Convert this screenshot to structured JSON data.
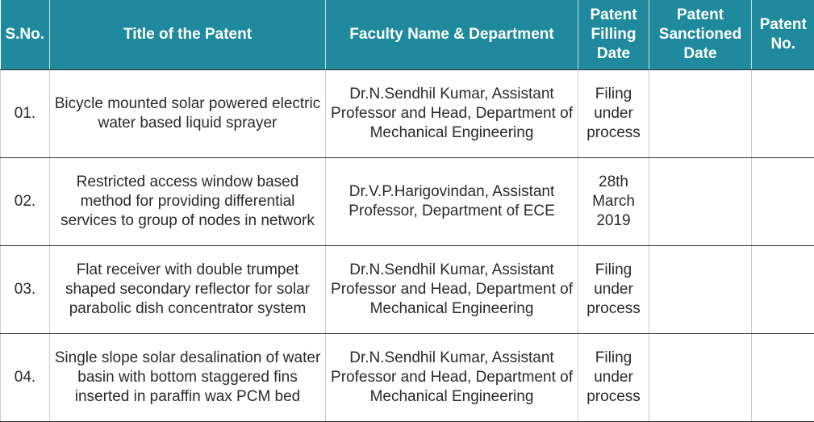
{
  "header": {
    "sno": "S.No.",
    "title": "Title of the Patent",
    "faculty": "Faculty Name & Department",
    "filling_date": "Patent Filling Date",
    "sanctioned_date": "Patent Sanctioned Date",
    "patent_no": "Patent No."
  },
  "rows": [
    {
      "sno": "01.",
      "title": "Bicycle mounted solar powered electric water based liquid sprayer",
      "faculty": "Dr.N.Sendhil Kumar, Assistant Professor and Head, Department of Mechanical Engineering",
      "filling_date": "Filing under process",
      "sanctioned_date": "",
      "patent_no": ""
    },
    {
      "sno": "02.",
      "title": "Restricted access window based method for providing differential services to group of nodes in network",
      "faculty": "Dr.V.P.Harigovindan, Assistant Professor, Department of ECE",
      "filling_date": "28th March 2019",
      "sanctioned_date": "",
      "patent_no": ""
    },
    {
      "sno": "03.",
      "title": "Flat receiver with double trumpet shaped secondary reflector for solar parabolic dish concentrator system",
      "faculty": "Dr.N.Sendhil Kumar, Assistant Professor and Head, Department of Mechanical Engineering",
      "filling_date": "Filing under process",
      "sanctioned_date": "",
      "patent_no": ""
    },
    {
      "sno": "04.",
      "title": "Single slope solar desalination of water basin with bottom staggered fins inserted in paraffin wax PCM bed",
      "faculty": "Dr.N.Sendhil Kumar, Assistant Professor and Head, Department of Mechanical Engineering",
      "filling_date": "Filing under process",
      "sanctioned_date": "",
      "patent_no": ""
    }
  ],
  "colors": {
    "header_bg": "#1f8a9e",
    "header_text": "#ffffff",
    "body_text": "#2a2a2a"
  }
}
